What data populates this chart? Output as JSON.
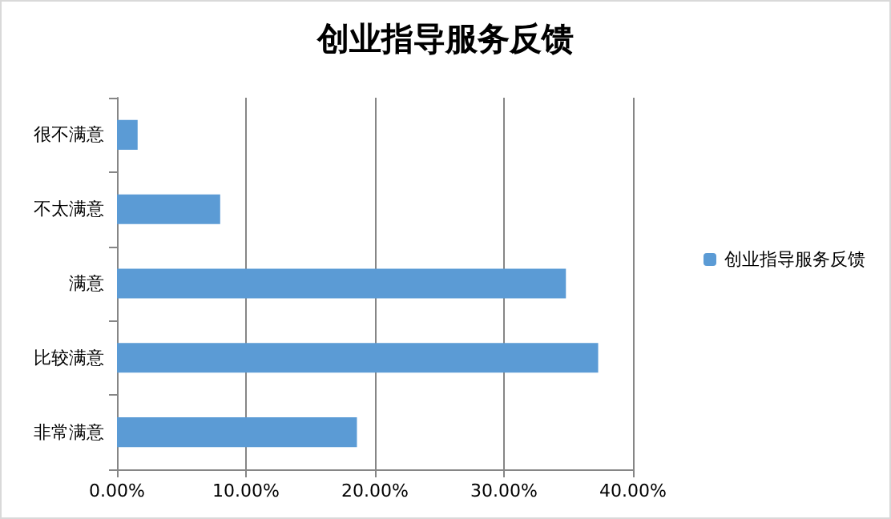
{
  "chart_data": {
    "type": "bar",
    "orientation": "horizontal",
    "title": "创业指导服务反馈",
    "categories": [
      "很不满意",
      "不太满意",
      "满意",
      "比较满意",
      "非常满意"
    ],
    "series": [
      {
        "name": "创业指导服务反馈",
        "color": "#5b9bd5",
        "values": [
          1.6,
          8.0,
          34.8,
          37.3,
          18.6
        ]
      }
    ],
    "xlim": [
      0,
      40
    ],
    "xticks": [
      {
        "value": 0,
        "label": "0.00%"
      },
      {
        "value": 10,
        "label": "10.00%"
      },
      {
        "value": 20,
        "label": "20.00%"
      },
      {
        "value": 30,
        "label": "30.00%"
      },
      {
        "value": 40,
        "label": "40.00%"
      }
    ],
    "grid": "x",
    "legend": "right"
  }
}
